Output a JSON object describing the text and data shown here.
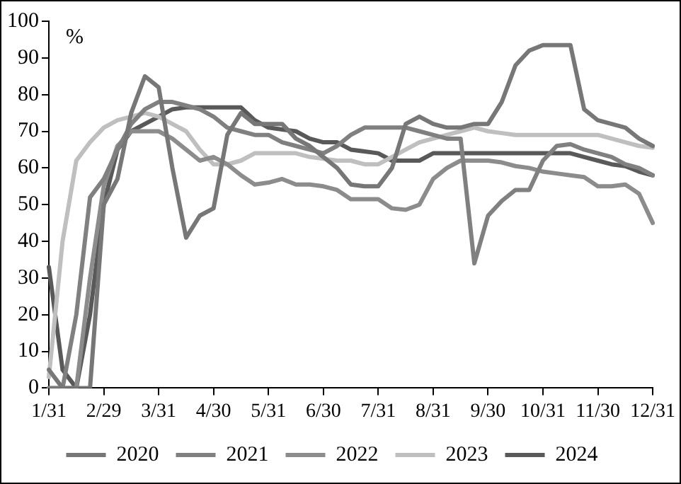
{
  "chart_data": {
    "type": "line",
    "ylabel": "%",
    "categories": [
      "1/31",
      null,
      null,
      null,
      "2/29",
      null,
      null,
      null,
      "3/31",
      null,
      null,
      null,
      "4/30",
      null,
      null,
      null,
      "5/31",
      null,
      null,
      null,
      "6/30",
      null,
      null,
      null,
      "7/31",
      null,
      null,
      null,
      "8/31",
      null,
      null,
      null,
      "9/30",
      null,
      null,
      null,
      "10/31",
      null,
      null,
      null,
      "11/30",
      null,
      null,
      null,
      "12/31"
    ],
    "series": [
      {
        "name": "2020",
        "color": "#777777",
        "values": [
          5,
          0,
          0,
          0,
          50,
          57,
          75,
          85,
          82,
          60,
          41,
          47,
          49,
          69,
          75,
          72,
          72,
          72,
          68,
          66,
          63,
          60,
          55.5,
          55,
          55,
          60,
          72,
          74,
          72,
          71,
          71,
          72,
          72,
          78,
          88,
          92,
          93.5,
          93.5,
          93.5,
          76,
          73,
          72,
          71,
          68,
          66
        ]
      },
      {
        "name": "2021",
        "color": "#808080",
        "values": [
          0,
          0,
          20,
          52,
          57,
          65,
          72,
          76,
          78,
          78,
          77,
          76,
          74,
          71,
          70,
          69,
          69,
          67,
          66,
          65,
          64,
          66,
          69,
          71,
          71,
          71,
          71,
          70,
          69,
          68,
          68,
          34,
          47,
          51,
          54,
          54,
          62,
          66,
          66.5,
          65,
          64,
          63,
          61,
          60,
          58
        ]
      },
      {
        "name": "2022",
        "color": "#8c8c8c",
        "values": [
          0,
          0,
          0,
          30,
          55,
          66,
          70,
          70,
          70,
          68,
          65,
          62,
          63,
          61,
          58,
          55.5,
          56,
          57,
          55.5,
          55.5,
          55,
          54,
          51.5,
          51.5,
          51.5,
          49,
          48.6,
          50,
          57,
          60,
          62,
          62,
          62,
          61.5,
          60.5,
          60,
          59,
          58.5,
          58,
          57.5,
          55,
          55,
          55.5,
          53,
          45
        ]
      },
      {
        "name": "2023",
        "color": "#bfbfbf",
        "values": [
          3,
          40,
          62,
          67,
          71,
          73,
          74,
          75,
          74,
          72,
          70,
          65,
          61,
          61,
          62,
          64,
          64,
          64,
          64,
          63,
          62.5,
          62,
          62,
          61,
          61,
          63,
          65,
          67,
          68,
          69,
          70,
          71,
          70,
          69.5,
          69,
          69,
          69,
          69,
          69,
          69,
          69,
          68,
          67,
          66,
          65.5
        ]
      },
      {
        "name": "2024",
        "color": "#595959",
        "values": [
          33,
          5,
          0,
          20,
          50,
          65,
          70,
          72,
          74,
          76,
          76.5,
          76.5,
          76.5,
          76.5,
          76.5,
          73,
          71,
          70.5,
          70,
          68,
          67,
          67,
          65,
          64.5,
          64,
          62,
          62,
          62,
          64,
          64,
          64,
          64,
          64,
          64,
          64,
          64,
          64,
          64,
          64,
          63,
          62,
          61,
          60.5,
          59,
          58
        ]
      }
    ],
    "ylim": [
      0,
      100
    ],
    "yticks": [
      0,
      10,
      20,
      30,
      40,
      50,
      60,
      70,
      80,
      90,
      100
    ],
    "grid": false,
    "legend": "bottom",
    "marker": "none",
    "line_style": "solid"
  }
}
